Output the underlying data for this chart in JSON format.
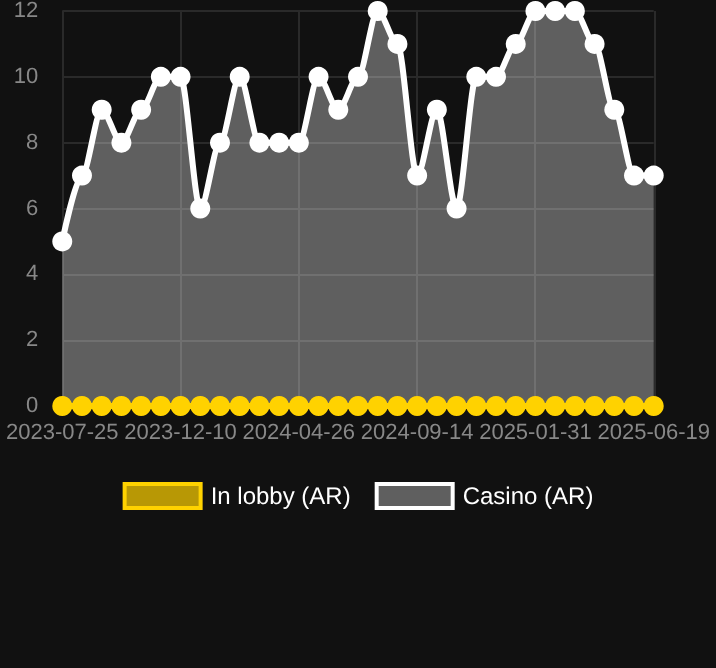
{
  "chart_data": {
    "type": "area",
    "categories": [
      "2023-07-25",
      null,
      null,
      null,
      null,
      null,
      "2023-12-10",
      null,
      null,
      null,
      null,
      null,
      "2024-04-26",
      null,
      null,
      null,
      null,
      null,
      "2024-09-14",
      null,
      null,
      null,
      null,
      null,
      "2025-01-31",
      null,
      null,
      null,
      null,
      null,
      "2025-06-19"
    ],
    "series": [
      {
        "name": "In lobby (AR)",
        "type": "line",
        "color": "#ffd200",
        "values": [
          0,
          0,
          0,
          0,
          0,
          0,
          0,
          0,
          0,
          0,
          0,
          0,
          0,
          0,
          0,
          0,
          0,
          0,
          0,
          0,
          0,
          0,
          0,
          0,
          0,
          0,
          0,
          0,
          0,
          0,
          0
        ]
      },
      {
        "name": "Casino (AR)",
        "color": "#ffffff",
        "values": [
          5,
          7,
          9,
          8,
          9,
          10,
          10,
          6,
          8,
          10,
          8,
          8,
          8,
          10,
          9,
          10,
          12,
          11,
          7,
          9,
          6,
          10,
          10,
          11,
          12,
          12,
          12,
          11,
          9,
          7,
          7
        ]
      }
    ],
    "ylim": [
      0,
      12
    ],
    "yticks": [
      0,
      2,
      4,
      6,
      8,
      10,
      12
    ],
    "grid": true,
    "legend": "bottom",
    "marker": "circle"
  }
}
